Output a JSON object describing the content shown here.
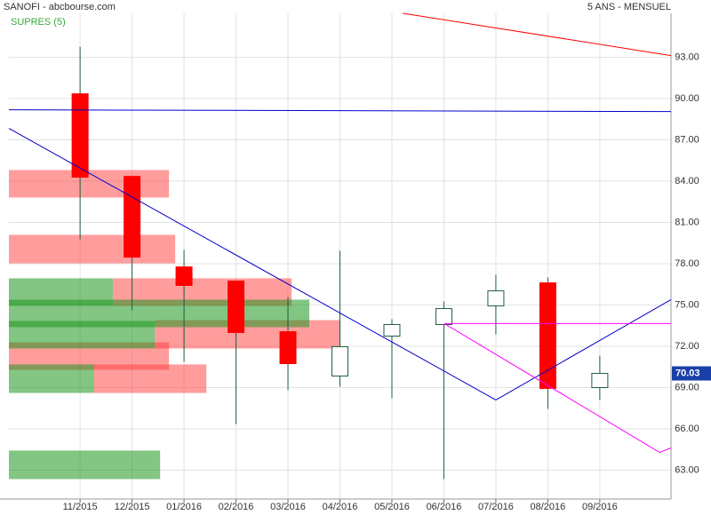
{
  "chart_data": {
    "type": "candlestick",
    "title": "SANOFI - abcbourse.com",
    "subtitle": "5 ANS - MENSUEL",
    "indicator": "SUPRES (5)",
    "last_price": 70.03,
    "last_price_label": "70.03",
    "categories": [
      "11/2015",
      "12/2015",
      "01/2016",
      "02/2016",
      "03/2016",
      "04/2016",
      "05/2016",
      "06/2016",
      "07/2016",
      "08/2016",
      "09/2016"
    ],
    "open": [
      90.35,
      84.35,
      77.77,
      76.74,
      73.06,
      69.84,
      72.74,
      73.58,
      74.94,
      76.61,
      69.0
    ],
    "high": [
      93.77,
      84.35,
      79.0,
      76.74,
      75.58,
      78.94,
      73.97,
      75.26,
      77.19,
      77.0,
      71.32
    ],
    "low": [
      79.77,
      74.61,
      70.87,
      66.35,
      68.81,
      69.06,
      68.23,
      62.35,
      72.87,
      67.45,
      68.1
    ],
    "close": [
      84.29,
      78.48,
      76.42,
      73.0,
      70.74,
      71.97,
      73.58,
      74.74,
      76.03,
      68.94,
      70.03
    ],
    "up_color": "#ffffff",
    "down_color": "#ff0000",
    "wick_color": "#1f5f3f",
    "xlim": [
      -1.37,
      11.37
    ],
    "ylim": [
      60.9,
      96.2
    ],
    "yticks": [
      {
        "value": 63,
        "label": "63.00"
      },
      {
        "value": 66,
        "label": "66.00"
      },
      {
        "value": 69,
        "label": "69.00"
      },
      {
        "value": 72,
        "label": "72.00"
      },
      {
        "value": 75,
        "label": "75.00"
      },
      {
        "value": 78,
        "label": "78.00"
      },
      {
        "value": 81,
        "label": "81.00"
      },
      {
        "value": 84,
        "label": "84.00"
      },
      {
        "value": 87,
        "label": "87.00"
      },
      {
        "value": 90,
        "label": "90.00"
      },
      {
        "value": 93,
        "label": "93.00"
      }
    ],
    "grid": true,
    "zones": [
      {
        "color": "rgba(255,60,60,0.5)",
        "from": -1.37,
        "to": 1.71,
        "low": 82.81,
        "high": 84.81
      },
      {
        "color": "rgba(255,60,60,0.5)",
        "from": -1.37,
        "to": 1.83,
        "low": 78.03,
        "high": 80.1
      },
      {
        "color": "rgba(255,60,60,0.5)",
        "from": 0.63,
        "to": 4.07,
        "low": 74.94,
        "high": 76.94
      },
      {
        "color": "rgba(255,60,60,0.5)",
        "from": 1.44,
        "to": 5.0,
        "low": 71.84,
        "high": 73.9
      },
      {
        "color": "rgba(255,60,60,0.5)",
        "from": -1.37,
        "to": 1.71,
        "low": 70.29,
        "high": 72.29
      },
      {
        "color": "rgba(255,60,60,0.5)",
        "from": 0.27,
        "to": 2.43,
        "low": 68.61,
        "high": 70.68
      },
      {
        "color": "rgba(30,150,30,0.55)",
        "from": -1.37,
        "to": 0.63,
        "low": 74.94,
        "high": 76.94
      },
      {
        "color": "rgba(30,150,30,0.55)",
        "from": -1.37,
        "to": 4.41,
        "low": 73.39,
        "high": 75.39
      },
      {
        "color": "rgba(30,150,30,0.55)",
        "from": -1.37,
        "to": 1.44,
        "low": 71.84,
        "high": 73.84
      },
      {
        "color": "rgba(30,150,30,0.55)",
        "from": -1.37,
        "to": 0.27,
        "low": 68.61,
        "high": 70.68
      },
      {
        "color": "rgba(30,150,30,0.55)",
        "from": -1.37,
        "to": 1.54,
        "low": 62.35,
        "high": 64.42
      }
    ],
    "lines": [
      {
        "color": "#ff0000",
        "x": [
          6.21,
          11.37
        ],
        "values": [
          96.2,
          93.13
        ]
      },
      {
        "color": "#0000cc",
        "x": [
          -1.37,
          11.37
        ],
        "values": [
          89.19,
          89.06
        ]
      },
      {
        "color": "#0000cc",
        "x": [
          -1.37,
          8.0,
          11.37
        ],
        "values": [
          87.84,
          68.1,
          75.39
        ]
      },
      {
        "color": "#ff00ff",
        "x": [
          7.01,
          11.37
        ],
        "values": [
          73.65,
          73.65
        ]
      },
      {
        "color": "#ff00ff",
        "x": [
          7.01,
          11.15,
          11.37
        ],
        "values": [
          73.65,
          64.29,
          64.61
        ]
      }
    ]
  }
}
